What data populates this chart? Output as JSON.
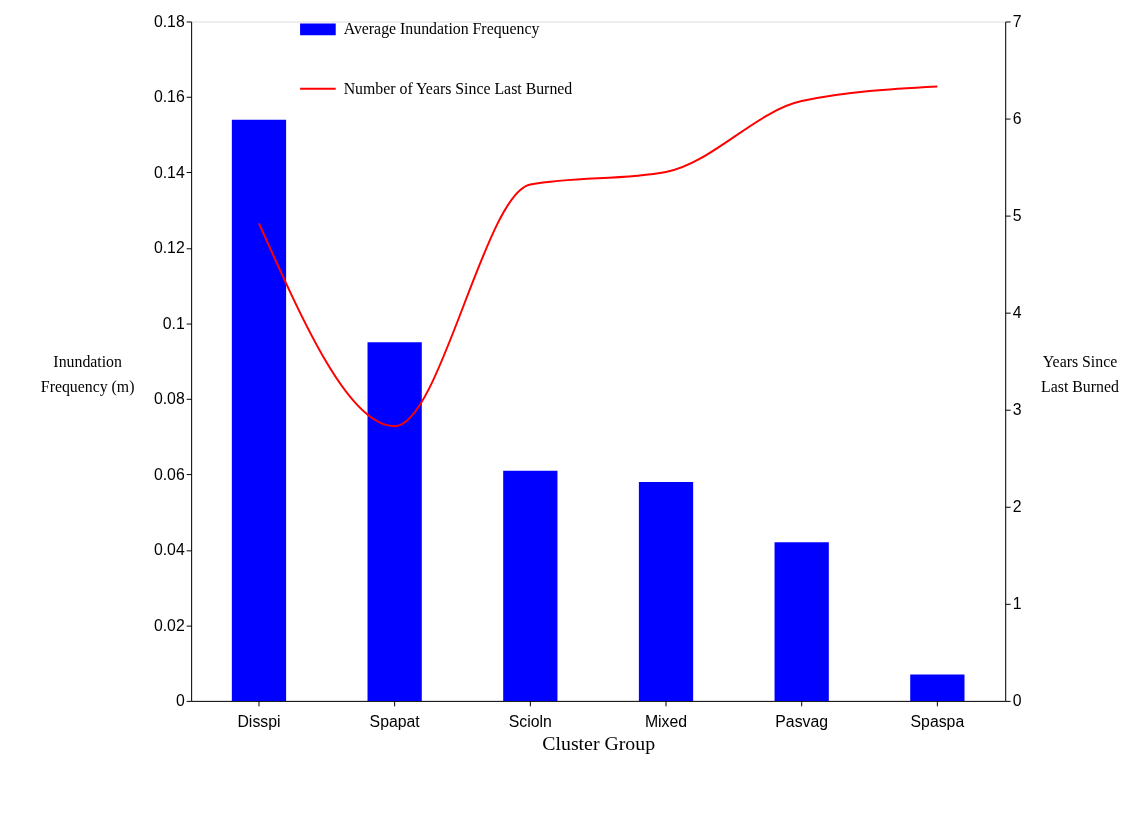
{
  "chart_data": {
    "type": "bar",
    "xlabel": "Cluster Group",
    "ylabel": "Inundation Frequency (m)",
    "y2label": "Years Since Last Burned",
    "categories": [
      "Disspi",
      "Spapat",
      "Scioln",
      "Mixed",
      "Pasvag",
      "Spaspa"
    ],
    "series": [
      {
        "name": "Average Inundation Frequency",
        "color": "#0000ff",
        "values": [
          0.154,
          0.095,
          0.061,
          0.058,
          0.042,
          0.007
        ]
      },
      {
        "name": "Number of Years Since Last Burned",
        "type": "line",
        "axis": "y2",
        "color": "#ff0000",
        "marker": "none",
        "values": [
          4.92,
          2.83,
          5.32,
          5.45,
          6.18,
          6.33
        ]
      }
    ],
    "ylim": [
      0,
      0.18
    ],
    "yticks": [
      0,
      0.02,
      0.04,
      0.06,
      0.08,
      0.1,
      0.12,
      0.14,
      0.16,
      0.18
    ],
    "y2lim": [
      0,
      7
    ],
    "y2ticks": [
      0,
      1,
      2,
      3,
      4,
      5,
      6,
      7
    ],
    "grid": false,
    "legend": "top left"
  }
}
